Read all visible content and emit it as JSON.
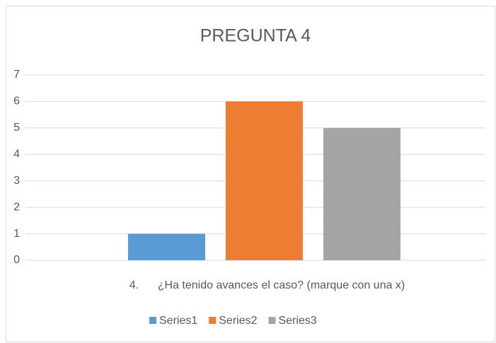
{
  "chart_data": {
    "type": "bar",
    "title": "PREGUNTA 4",
    "categories": [
      "4.      ¿Ha tenido avances el caso? (marque con una x)"
    ],
    "series": [
      {
        "name": "Series1",
        "color": "#5b9bd5",
        "values": [
          1
        ]
      },
      {
        "name": "Series2",
        "color": "#ed7d31",
        "values": [
          6
        ]
      },
      {
        "name": "Series3",
        "color": "#a5a5a5",
        "values": [
          5
        ]
      }
    ],
    "ylim": [
      0,
      7
    ],
    "yticks": [
      0,
      1,
      2,
      3,
      4,
      5,
      6,
      7
    ],
    "grid": true,
    "legend": "bottom"
  }
}
